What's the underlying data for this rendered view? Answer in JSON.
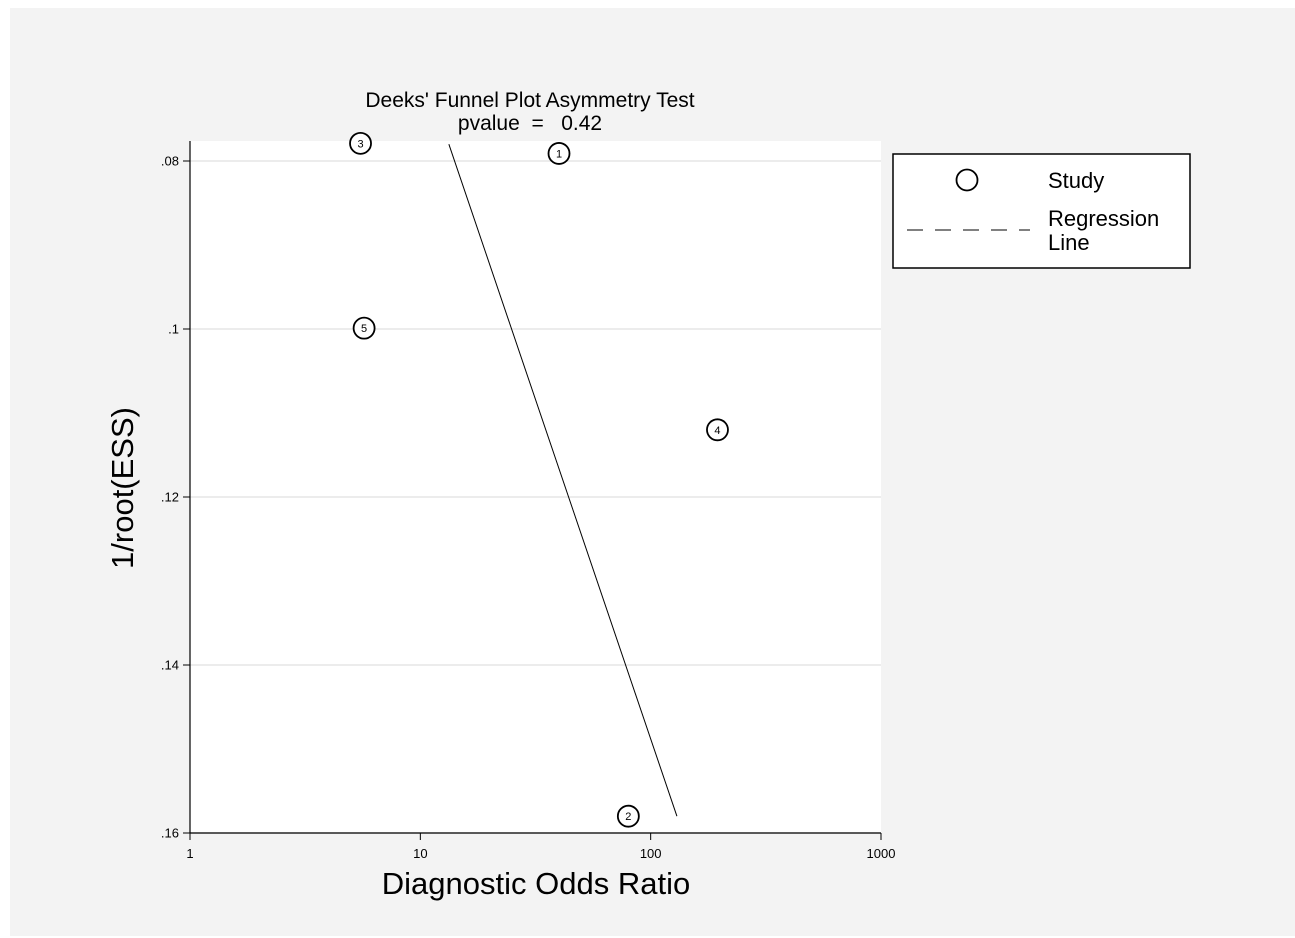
{
  "chart_data": {
    "type": "scatter",
    "title": "Deeks' Funnel Plot Asymmetry Test",
    "subtitle": "pvalue  =   0.42",
    "xlabel": "Diagnostic Odds Ratio",
    "ylabel": "1/root(ESS)",
    "x_scale": "log",
    "xlim": [
      1,
      1000
    ],
    "ylim": [
      0.08,
      0.16
    ],
    "y_reversed": true,
    "x_ticks": [
      1,
      10,
      100,
      1000
    ],
    "x_tick_labels": [
      "1",
      "10",
      "100",
      "1000"
    ],
    "y_ticks": [
      0.08,
      0.1,
      0.12,
      0.14,
      0.16
    ],
    "y_tick_labels": [
      ".08",
      ".1",
      ".12",
      ".14",
      ".16"
    ],
    "grid": "horizontal",
    "series": [
      {
        "name": "Study",
        "points": [
          {
            "label": "1",
            "x": 40,
            "y": 0.0791
          },
          {
            "label": "2",
            "x": 80,
            "y": 0.158
          },
          {
            "label": "3",
            "x": 5.5,
            "y": 0.0779
          },
          {
            "label": "4",
            "x": 195,
            "y": 0.112
          },
          {
            "label": "5",
            "x": 5.7,
            "y": 0.0999
          }
        ]
      },
      {
        "name": "Regression Line",
        "line": [
          {
            "x": 13.3,
            "y": 0.078
          },
          {
            "x": 130,
            "y": 0.158
          }
        ]
      }
    ],
    "legend": {
      "position": "right",
      "items": [
        {
          "label": "Study",
          "marker": "circle"
        },
        {
          "label": "Regression\nLine",
          "marker": "dashed-line"
        }
      ]
    }
  }
}
